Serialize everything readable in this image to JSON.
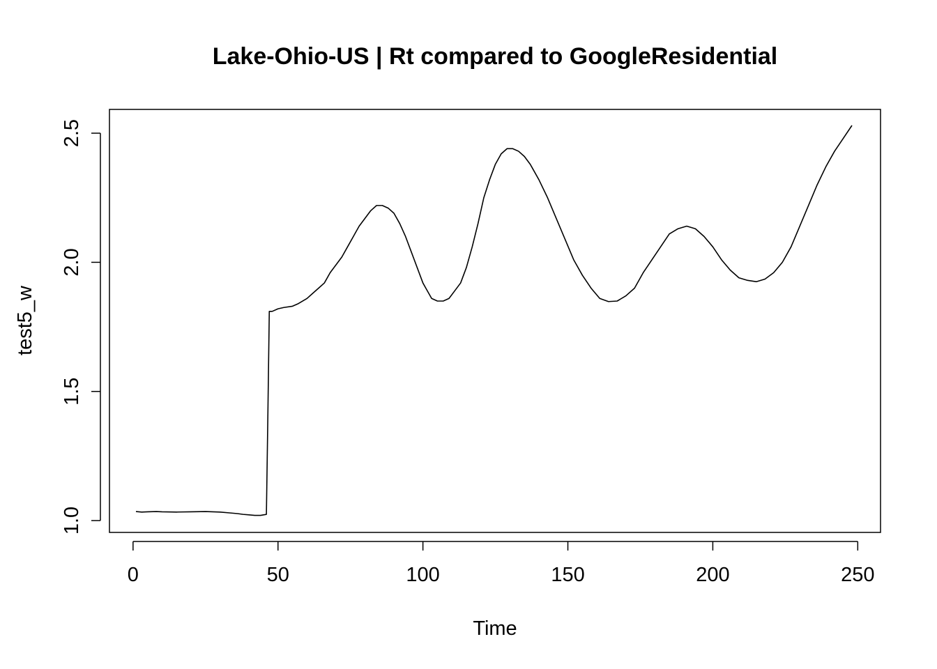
{
  "chart_data": {
    "type": "line",
    "title": "Lake-Ohio-US | Rt compared to GoogleResidential",
    "xlabel": "Time",
    "ylabel": "test5_w",
    "xlim": [
      1,
      248
    ],
    "ylim": [
      1.0,
      2.53
    ],
    "x_ticks": [
      0,
      50,
      100,
      150,
      200,
      250
    ],
    "x_tick_labels": [
      "0",
      "50",
      "100",
      "150",
      "200",
      "250"
    ],
    "y_ticks": [
      1.0,
      1.5,
      2.0,
      2.5
    ],
    "y_tick_labels": [
      "1.0",
      "1.5",
      "2.0",
      "2.5"
    ],
    "grid": false,
    "series": [
      {
        "x": [
          1,
          3,
          5,
          8,
          10,
          15,
          20,
          25,
          30,
          33,
          36,
          38,
          40,
          42,
          44,
          45,
          46,
          46.5,
          47,
          48,
          50,
          52,
          55,
          57,
          60,
          62,
          64,
          66,
          68,
          70,
          72,
          74,
          76,
          78,
          80,
          82,
          84,
          86,
          88,
          90,
          92,
          94,
          96,
          98,
          100,
          101,
          103,
          105,
          107,
          109,
          111,
          113,
          115,
          117,
          119,
          121,
          123,
          125,
          127,
          129,
          131,
          133,
          135,
          137,
          140,
          143,
          146,
          149,
          152,
          155,
          158,
          161,
          164,
          167,
          170,
          173,
          176,
          179,
          182,
          185,
          188,
          191,
          194,
          197,
          200,
          203,
          206,
          209,
          212,
          215,
          218,
          221,
          224,
          227,
          230,
          233,
          236,
          239,
          242,
          245,
          248
        ],
        "values": [
          1.035,
          1.033,
          1.034,
          1.035,
          1.034,
          1.033,
          1.034,
          1.035,
          1.033,
          1.03,
          1.027,
          1.024,
          1.022,
          1.02,
          1.02,
          1.022,
          1.024,
          1.4,
          1.81,
          1.81,
          1.82,
          1.825,
          1.83,
          1.84,
          1.86,
          1.88,
          1.9,
          1.92,
          1.96,
          1.99,
          2.02,
          2.06,
          2.1,
          2.14,
          2.17,
          2.2,
          2.22,
          2.22,
          2.21,
          2.19,
          2.15,
          2.1,
          2.04,
          1.98,
          1.92,
          1.9,
          1.86,
          1.85,
          1.85,
          1.86,
          1.89,
          1.92,
          1.98,
          2.06,
          2.15,
          2.25,
          2.32,
          2.38,
          2.42,
          2.44,
          2.44,
          2.43,
          2.41,
          2.38,
          2.32,
          2.25,
          2.17,
          2.09,
          2.01,
          1.95,
          1.9,
          1.86,
          1.848,
          1.85,
          1.87,
          1.9,
          1.96,
          2.01,
          2.06,
          2.11,
          2.13,
          2.14,
          2.13,
          2.1,
          2.06,
          2.01,
          1.97,
          1.94,
          1.93,
          1.925,
          1.935,
          1.96,
          2.0,
          2.06,
          2.14,
          2.22,
          2.3,
          2.37,
          2.43,
          2.48,
          2.53
        ]
      }
    ]
  }
}
